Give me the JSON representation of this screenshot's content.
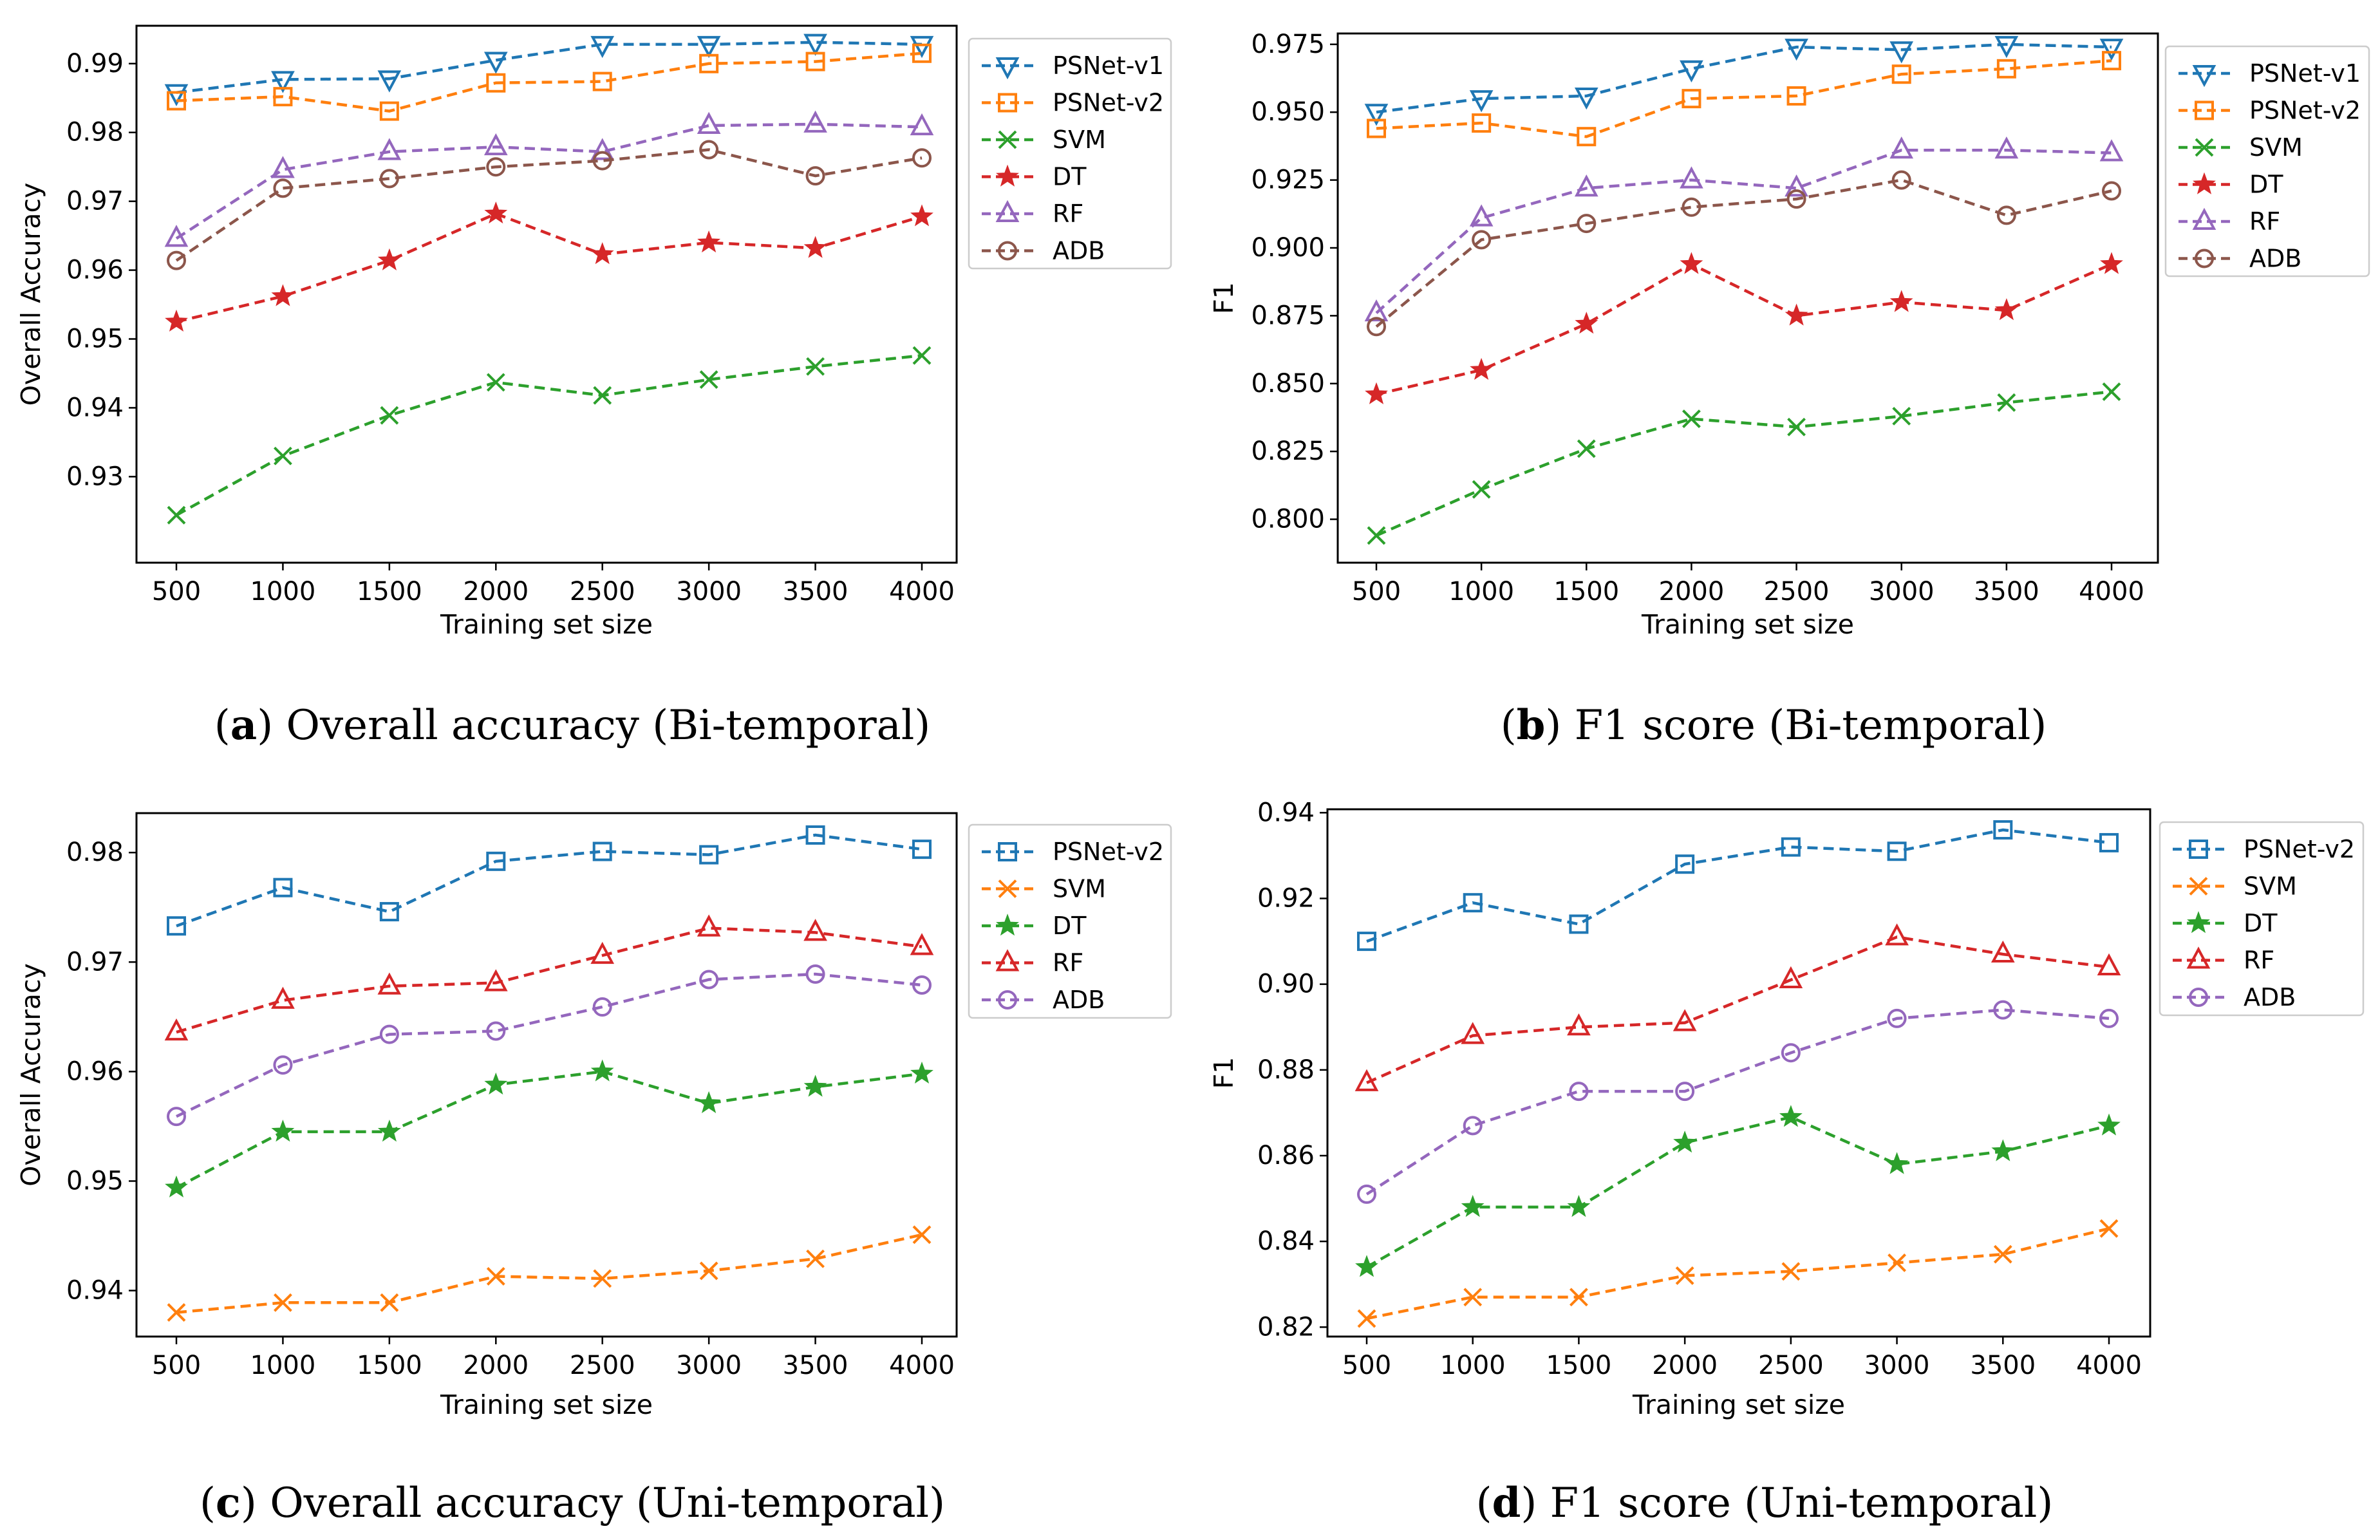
{
  "chart_data": [
    {
      "id": "a",
      "type": "line",
      "caption_letter": "a",
      "caption_text": ") Overall accuracy (Bi-temporal)",
      "xlabel": "Training set size",
      "ylabel": "Overall Accuracy",
      "x": [
        500,
        1000,
        1500,
        2000,
        2500,
        3000,
        3500,
        4000
      ],
      "xticks": [
        "500",
        "1000",
        "1500",
        "2000",
        "2500",
        "3000",
        "3500",
        "4000"
      ],
      "ylim": [
        0.9175,
        0.9955
      ],
      "yticks": [
        0.93,
        0.94,
        0.95,
        0.96,
        0.97,
        0.98,
        0.99
      ],
      "yticklabels": [
        "0.93",
        "0.94",
        "0.95",
        "0.96",
        "0.97",
        "0.98",
        "0.99"
      ],
      "legend": "top-right",
      "series": [
        {
          "name": "PSNet-v1",
          "color": "#1f77b4",
          "marker": "triangle-down",
          "values": [
            0.9858,
            0.9877,
            0.9878,
            0.9905,
            0.9928,
            0.9928,
            0.9931,
            0.9928
          ]
        },
        {
          "name": "PSNet-v2",
          "color": "#ff7f0e",
          "marker": "square",
          "values": [
            0.9846,
            0.9852,
            0.9831,
            0.9872,
            0.9874,
            0.99,
            0.9903,
            0.9915
          ]
        },
        {
          "name": "SVM",
          "color": "#2ca02c",
          "marker": "x",
          "values": [
            0.9244,
            0.933,
            0.9389,
            0.9437,
            0.9418,
            0.9441,
            0.946,
            0.9476
          ]
        },
        {
          "name": "DT",
          "color": "#d62728",
          "marker": "star",
          "values": [
            0.9525,
            0.9562,
            0.9614,
            0.9682,
            0.9623,
            0.964,
            0.9632,
            0.9678
          ]
        },
        {
          "name": "RF",
          "color": "#9467bd",
          "marker": "triangle-up",
          "values": [
            0.9646,
            0.9746,
            0.9772,
            0.9779,
            0.9772,
            0.981,
            0.9812,
            0.9808
          ]
        },
        {
          "name": "ADB",
          "color": "#8c564b",
          "marker": "circle",
          "values": [
            0.9614,
            0.9719,
            0.9733,
            0.975,
            0.9759,
            0.9775,
            0.9737,
            0.9763
          ]
        }
      ]
    },
    {
      "id": "b",
      "type": "line",
      "caption_letter": "b",
      "caption_text": ") F1 score (Bi-temporal)",
      "xlabel": "Training set size",
      "ylabel": "F1",
      "x": [
        500,
        1000,
        1500,
        2000,
        2500,
        3000,
        3500,
        4000
      ],
      "xticks": [
        "500",
        "1000",
        "1500",
        "2000",
        "2500",
        "3000",
        "3500",
        "4000"
      ],
      "ylim": [
        0.784,
        0.979
      ],
      "yticks": [
        0.8,
        0.825,
        0.85,
        0.875,
        0.9,
        0.925,
        0.95,
        0.975
      ],
      "yticklabels": [
        "0.800",
        "0.825",
        "0.850",
        "0.875",
        "0.900",
        "0.925",
        "0.950",
        "0.975"
      ],
      "legend": "top-right",
      "series": [
        {
          "name": "PSNet-v1",
          "color": "#1f77b4",
          "marker": "triangle-down",
          "values": [
            0.95,
            0.955,
            0.956,
            0.966,
            0.974,
            0.973,
            0.975,
            0.974
          ]
        },
        {
          "name": "PSNet-v2",
          "color": "#ff7f0e",
          "marker": "square",
          "values": [
            0.944,
            0.946,
            0.941,
            0.955,
            0.956,
            0.964,
            0.966,
            0.969
          ]
        },
        {
          "name": "SVM",
          "color": "#2ca02c",
          "marker": "x",
          "values": [
            0.794,
            0.811,
            0.826,
            0.837,
            0.834,
            0.838,
            0.843,
            0.847
          ]
        },
        {
          "name": "DT",
          "color": "#d62728",
          "marker": "star",
          "values": [
            0.846,
            0.855,
            0.872,
            0.894,
            0.875,
            0.88,
            0.877,
            0.894
          ]
        },
        {
          "name": "RF",
          "color": "#9467bd",
          "marker": "triangle-up",
          "values": [
            0.876,
            0.911,
            0.922,
            0.925,
            0.922,
            0.936,
            0.936,
            0.935
          ]
        },
        {
          "name": "ADB",
          "color": "#8c564b",
          "marker": "circle",
          "values": [
            0.871,
            0.903,
            0.909,
            0.915,
            0.918,
            0.925,
            0.912,
            0.921
          ]
        }
      ]
    },
    {
      "id": "c",
      "type": "line",
      "caption_letter": "c",
      "caption_text": ") Overall accuracy (Uni-temporal)",
      "xlabel": "Training set size",
      "ylabel": "Overall Accuracy",
      "x": [
        500,
        1000,
        1500,
        2000,
        2500,
        3000,
        3500,
        4000
      ],
      "xticks": [
        "500",
        "1000",
        "1500",
        "2000",
        "2500",
        "3000",
        "3500",
        "4000"
      ],
      "ylim": [
        0.9358,
        0.9836
      ],
      "yticks": [
        0.94,
        0.95,
        0.96,
        0.97,
        0.98
      ],
      "yticklabels": [
        "0.94",
        "0.95",
        "0.96",
        "0.97",
        "0.98"
      ],
      "legend": "top-right",
      "series": [
        {
          "name": "PSNet-v2",
          "color": "#1f77b4",
          "marker": "square",
          "values": [
            0.9733,
            0.9768,
            0.9746,
            0.9792,
            0.9801,
            0.9798,
            0.9816,
            0.9803
          ]
        },
        {
          "name": "SVM",
          "color": "#ff7f0e",
          "marker": "x",
          "values": [
            0.938,
            0.9389,
            0.9389,
            0.9413,
            0.9411,
            0.9418,
            0.9429,
            0.9451
          ]
        },
        {
          "name": "DT",
          "color": "#2ca02c",
          "marker": "star",
          "values": [
            0.9494,
            0.9545,
            0.9545,
            0.9588,
            0.96,
            0.9571,
            0.9586,
            0.9598
          ]
        },
        {
          "name": "RF",
          "color": "#d62728",
          "marker": "triangle-up",
          "values": [
            0.9636,
            0.9665,
            0.9678,
            0.9681,
            0.9706,
            0.9731,
            0.9727,
            0.9714
          ]
        },
        {
          "name": "ADB",
          "color": "#9467bd",
          "marker": "circle",
          "values": [
            0.9559,
            0.9606,
            0.9634,
            0.9637,
            0.9659,
            0.9684,
            0.9689,
            0.9679
          ]
        }
      ]
    },
    {
      "id": "d",
      "type": "line",
      "caption_letter": "d",
      "caption_text": ") F1 score (Uni-temporal)",
      "xlabel": "Training set size",
      "ylabel": "F1",
      "x": [
        500,
        1000,
        1500,
        2000,
        2500,
        3000,
        3500,
        4000
      ],
      "xticks": [
        "500",
        "1000",
        "1500",
        "2000",
        "2500",
        "3000",
        "3500",
        "4000"
      ],
      "ylim": [
        0.8178,
        0.9408
      ],
      "yticks": [
        0.82,
        0.84,
        0.86,
        0.88,
        0.9,
        0.92,
        0.94
      ],
      "yticklabels": [
        "0.82",
        "0.84",
        "0.86",
        "0.88",
        "0.90",
        "0.92",
        "0.94"
      ],
      "legend": "top-right",
      "series": [
        {
          "name": "PSNet-v2",
          "color": "#1f77b4",
          "marker": "square",
          "values": [
            0.91,
            0.919,
            0.914,
            0.928,
            0.932,
            0.931,
            0.936,
            0.933
          ]
        },
        {
          "name": "SVM",
          "color": "#ff7f0e",
          "marker": "x",
          "values": [
            0.822,
            0.827,
            0.827,
            0.832,
            0.833,
            0.835,
            0.837,
            0.843
          ]
        },
        {
          "name": "DT",
          "color": "#2ca02c",
          "marker": "star",
          "values": [
            0.834,
            0.848,
            0.848,
            0.863,
            0.869,
            0.858,
            0.861,
            0.867
          ]
        },
        {
          "name": "RF",
          "color": "#d62728",
          "marker": "triangle-up",
          "values": [
            0.877,
            0.888,
            0.89,
            0.891,
            0.901,
            0.911,
            0.907,
            0.904
          ]
        },
        {
          "name": "ADB",
          "color": "#9467bd",
          "marker": "circle",
          "values": [
            0.851,
            0.867,
            0.875,
            0.875,
            0.884,
            0.892,
            0.894,
            0.892
          ]
        }
      ]
    }
  ]
}
